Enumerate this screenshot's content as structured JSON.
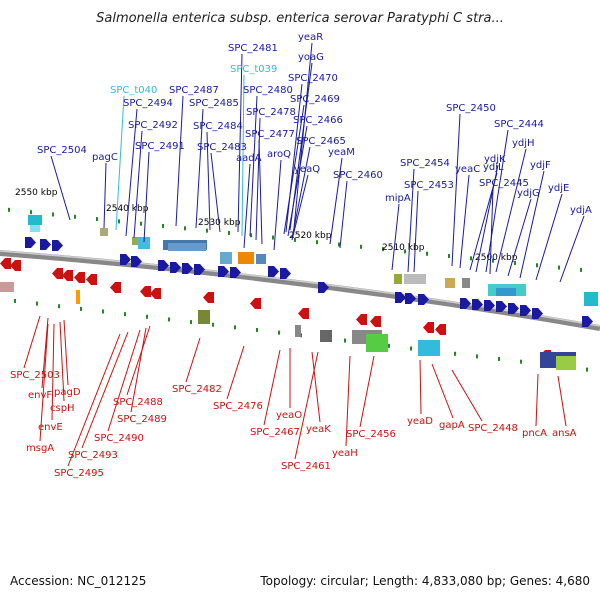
{
  "title": "Salmonella enterica subsp. enterica serovar Paratyphi C stra...",
  "footer": {
    "accession": "Accession: NC_012125",
    "summary": "Topology: circular; Length: 4,833,080 bp; Genes: 4,680"
  },
  "colors": {
    "forward": "#1a1aa0",
    "reverse": "#cc1111",
    "trna": "#33bbdd",
    "backbone": "#888888",
    "tick": "#228822"
  },
  "scale_labels": [
    "2550 kbp",
    "2540 kbp",
    "2530 kbp",
    "2520 kbp",
    "2510 kbp",
    "2500 kbp"
  ],
  "forward_genes": [
    "SPC_2504",
    "pagC",
    "SPC_t040",
    "SPC_2494",
    "SPC_2492",
    "SPC_2491",
    "SPC_2487",
    "SPC_2485",
    "SPC_2484",
    "SPC_2483",
    "SPC_2481",
    "SPC_t039",
    "SPC_2480",
    "SPC_2478",
    "SPC_2477",
    "aadA",
    "aroQ",
    "yeaR",
    "yoaG",
    "SPC_2470",
    "SPC_2469",
    "SPC_2466",
    "SPC_2465",
    "yeaQ",
    "yeaM",
    "SPC_2460",
    "mipA",
    "SPC_2454",
    "SPC_2453",
    "SPC_2450",
    "yeaC",
    "ydjL",
    "ydjK",
    "SPC_2444",
    "ydjH",
    "SPC_2445",
    "ydjG",
    "ydjF",
    "ydjE",
    "ydjA"
  ],
  "reverse_genes": [
    "SPC_2503",
    "envF",
    "pagD",
    "cspH",
    "envE",
    "msgA",
    "SPC_2488",
    "SPC_2489",
    "SPC_2490",
    "SPC_2493",
    "SPC_2495",
    "SPC_2482",
    "SPC_2476",
    "yeaO",
    "SPC_2467",
    "yeaK",
    "SPC_2461",
    "yeaH",
    "SPC_2456",
    "yeaD",
    "gapA",
    "SPC_2448",
    "pncA",
    "ansA"
  ]
}
